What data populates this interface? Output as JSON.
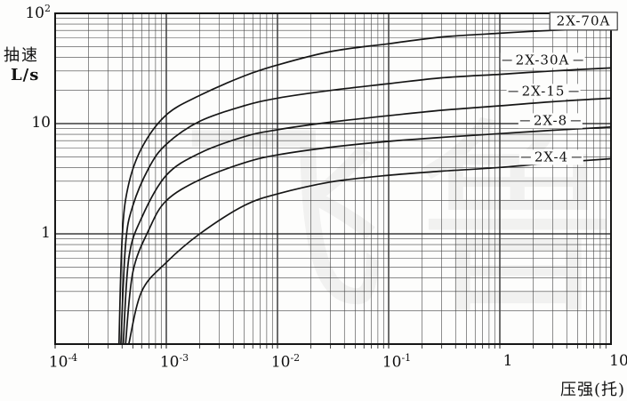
{
  "chart_data": {
    "type": "line",
    "scale": "log-log",
    "grid": "full log grid, major and minor lines, both axes",
    "legend_position": "labels beside curves at right side",
    "colors": {
      "ink": "#161616",
      "minor_grid": "#454545",
      "background": "#fdfdfc"
    },
    "yaxis": {
      "title_line1": "抽速",
      "title_line2": "L/s",
      "min": 0.1,
      "max": 100,
      "ticks": [
        {
          "base": "10",
          "sup": "2",
          "value": 100
        },
        {
          "base": "10",
          "sup": "",
          "value": 10
        },
        {
          "base": "1",
          "sup": "",
          "value": 1
        }
      ]
    },
    "xaxis": {
      "title": "压强(托)",
      "min": 0.0001,
      "max": 10,
      "ticks": [
        {
          "base": "10",
          "sup": "-4",
          "value": 0.0001
        },
        {
          "base": "10",
          "sup": "-3",
          "value": 0.001
        },
        {
          "base": "10",
          "sup": "-2",
          "value": 0.01
        },
        {
          "base": "10",
          "sup": "-1",
          "value": 0.1
        },
        {
          "base": "1",
          "sup": "",
          "value": 1
        },
        {
          "base": "10",
          "sup": "",
          "value": 10
        }
      ]
    },
    "series": [
      {
        "label": "2X-70A",
        "boxed": true,
        "points": [
          [
            0.000375,
            0.1
          ],
          [
            0.0004,
            0.9
          ],
          [
            0.00045,
            2.6
          ],
          [
            0.0006,
            6
          ],
          [
            0.001,
            12
          ],
          [
            0.002,
            18
          ],
          [
            0.005,
            27
          ],
          [
            0.01,
            34
          ],
          [
            0.03,
            45
          ],
          [
            0.1,
            53
          ],
          [
            0.3,
            61
          ],
          [
            1,
            66
          ],
          [
            3,
            70
          ],
          [
            10,
            73
          ]
        ]
      },
      {
        "label": "2X-30A",
        "boxed": false,
        "points": [
          [
            0.00039,
            0.1
          ],
          [
            0.00043,
            0.8
          ],
          [
            0.0005,
            1.8
          ],
          [
            0.0007,
            4
          ],
          [
            0.001,
            6.5
          ],
          [
            0.002,
            10.5
          ],
          [
            0.005,
            14.5
          ],
          [
            0.01,
            17
          ],
          [
            0.03,
            20
          ],
          [
            0.1,
            23
          ],
          [
            0.3,
            26
          ],
          [
            1,
            28
          ],
          [
            3,
            30
          ],
          [
            10,
            32
          ]
        ]
      },
      {
        "label": "2X-15",
        "boxed": false,
        "points": [
          [
            0.00041,
            0.1
          ],
          [
            0.00046,
            0.6
          ],
          [
            0.0006,
            1.4
          ],
          [
            0.001,
            3.4
          ],
          [
            0.002,
            5.4
          ],
          [
            0.005,
            7.6
          ],
          [
            0.01,
            8.8
          ],
          [
            0.03,
            10.3
          ],
          [
            0.1,
            11.8
          ],
          [
            0.3,
            13.2
          ],
          [
            1,
            14.5
          ],
          [
            3,
            15.8
          ],
          [
            10,
            17
          ]
        ]
      },
      {
        "label": "2X-8",
        "boxed": false,
        "points": [
          [
            0.00043,
            0.1
          ],
          [
            0.0005,
            0.45
          ],
          [
            0.0007,
            1.1
          ],
          [
            0.001,
            2.0
          ],
          [
            0.002,
            3.1
          ],
          [
            0.005,
            4.4
          ],
          [
            0.01,
            5.2
          ],
          [
            0.03,
            6.1
          ],
          [
            0.1,
            6.9
          ],
          [
            0.3,
            7.5
          ],
          [
            1,
            8.1
          ],
          [
            3,
            8.7
          ],
          [
            10,
            9.3
          ]
        ]
      },
      {
        "label": "2X-4",
        "boxed": false,
        "points": [
          [
            0.00046,
            0.1
          ],
          [
            0.0006,
            0.3
          ],
          [
            0.001,
            0.55
          ],
          [
            0.002,
            1.0
          ],
          [
            0.005,
            1.8
          ],
          [
            0.01,
            2.3
          ],
          [
            0.03,
            2.95
          ],
          [
            0.1,
            3.4
          ],
          [
            0.3,
            3.7
          ],
          [
            1,
            4.0
          ],
          [
            3,
            4.4
          ],
          [
            10,
            4.8
          ]
        ]
      }
    ],
    "watermark": {
      "glyphs": [
        "飞",
        "鲁"
      ]
    }
  }
}
